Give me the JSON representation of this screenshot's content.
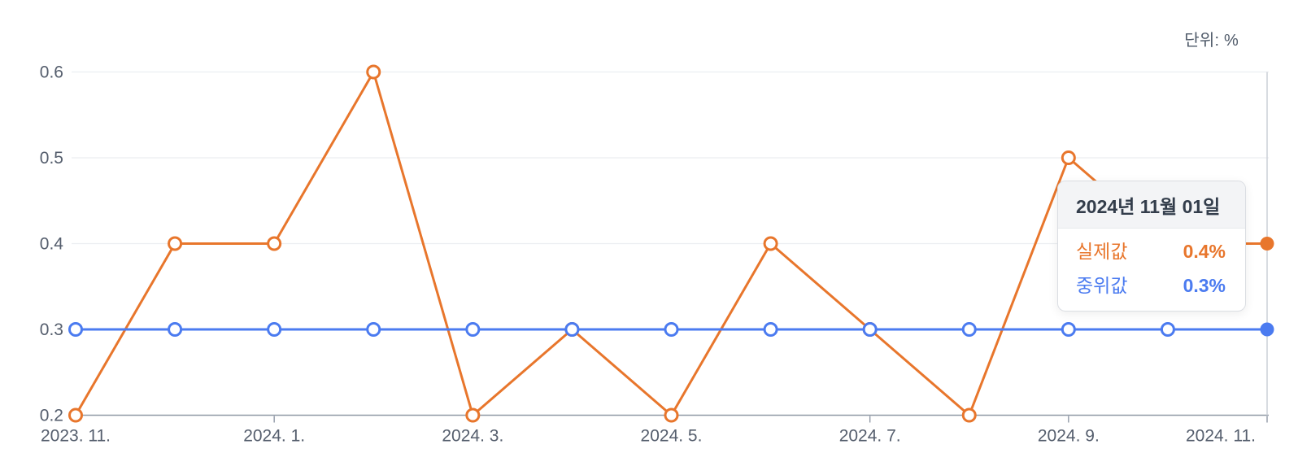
{
  "unit_label": "단위: %",
  "colors": {
    "actual": "#e8762c",
    "median": "#4b7bf0",
    "axis_line": "#9099a6",
    "grid_line": "#eceef1",
    "guide_line": "#ccd0d7",
    "tick_text": "#555e6d",
    "unit_text": "#4e5968",
    "tooltip_header_text": "#333d4b",
    "tooltip_border": "#dbdee3",
    "tooltip_header_bg": "#f3f4f6"
  },
  "tooltip": {
    "title": "2024년 11월 01일",
    "rows": [
      {
        "label": "실제값",
        "value": "0.4%",
        "series": "actual"
      },
      {
        "label": "중위값",
        "value": "0.3%",
        "series": "median"
      }
    ]
  },
  "chart_data": {
    "type": "line",
    "title": "",
    "xlabel": "",
    "ylabel": "",
    "unit": "%",
    "x": [
      "2023-11",
      "2023-12",
      "2024-01",
      "2024-02",
      "2024-03",
      "2024-04",
      "2024-05",
      "2024-06",
      "2024-07",
      "2024-08",
      "2024-09",
      "2024-10",
      "2024-11"
    ],
    "x_tick_labels": [
      "2023. 11.",
      "2024. 1.",
      "2024. 3.",
      "2024. 5.",
      "2024. 7.",
      "2024. 9.",
      "2024. 11."
    ],
    "x_tick_every": 2,
    "series": [
      {
        "name": "실제값",
        "color_key": "actual",
        "values": [
          0.2,
          0.4,
          0.4,
          0.6,
          0.2,
          0.3,
          0.2,
          0.4,
          0.3,
          0.2,
          0.5,
          0.4,
          0.4
        ]
      },
      {
        "name": "중위값",
        "color_key": "median",
        "values": [
          0.3,
          0.3,
          0.3,
          0.3,
          0.3,
          0.3,
          0.3,
          0.3,
          0.3,
          0.3,
          0.3,
          0.3,
          0.3
        ]
      }
    ],
    "ylim": [
      0.2,
      0.6
    ],
    "y_ticks": [
      0.2,
      0.3,
      0.4,
      0.5,
      0.6
    ],
    "grid": "horizontal",
    "legend_position": "none",
    "highlight_index": 12,
    "hover_guideline": true
  }
}
